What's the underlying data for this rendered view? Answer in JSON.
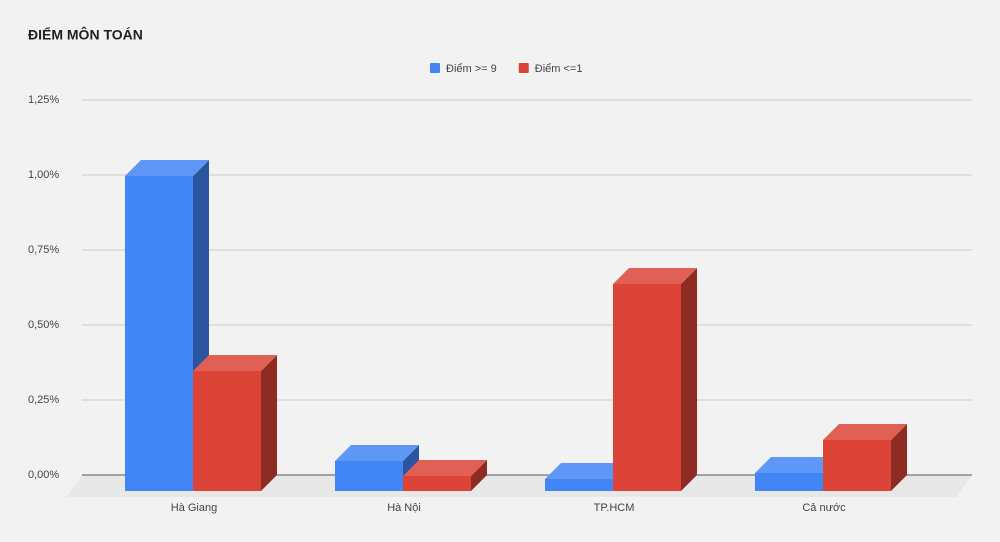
{
  "chart_data": {
    "type": "bar3d",
    "title": "ĐIỂM MÔN TOÁN",
    "categories": [
      "Hà Giang",
      "Hà Nội",
      "TP.HCM",
      "Cả nước"
    ],
    "series": [
      {
        "name": "Điểm >= 9",
        "color": "#4285f4",
        "values": [
          1.05,
          0.1,
          0.04,
          0.06
        ]
      },
      {
        "name": "Điểm <=1",
        "color": "#db4437",
        "values": [
          0.4,
          0.05,
          0.69,
          0.17
        ]
      }
    ],
    "ylim": [
      0,
      1.25
    ],
    "yticks": [
      {
        "value": 0,
        "label": "0,00%"
      },
      {
        "value": 0.25,
        "label": "0,25%"
      },
      {
        "value": 0.5,
        "label": "0,50%"
      },
      {
        "value": 0.75,
        "label": "0,75%"
      },
      {
        "value": 1,
        "label": "1,00%"
      },
      {
        "value": 1.25,
        "label": "1,25%"
      }
    ],
    "grid": true,
    "legend": "top"
  }
}
